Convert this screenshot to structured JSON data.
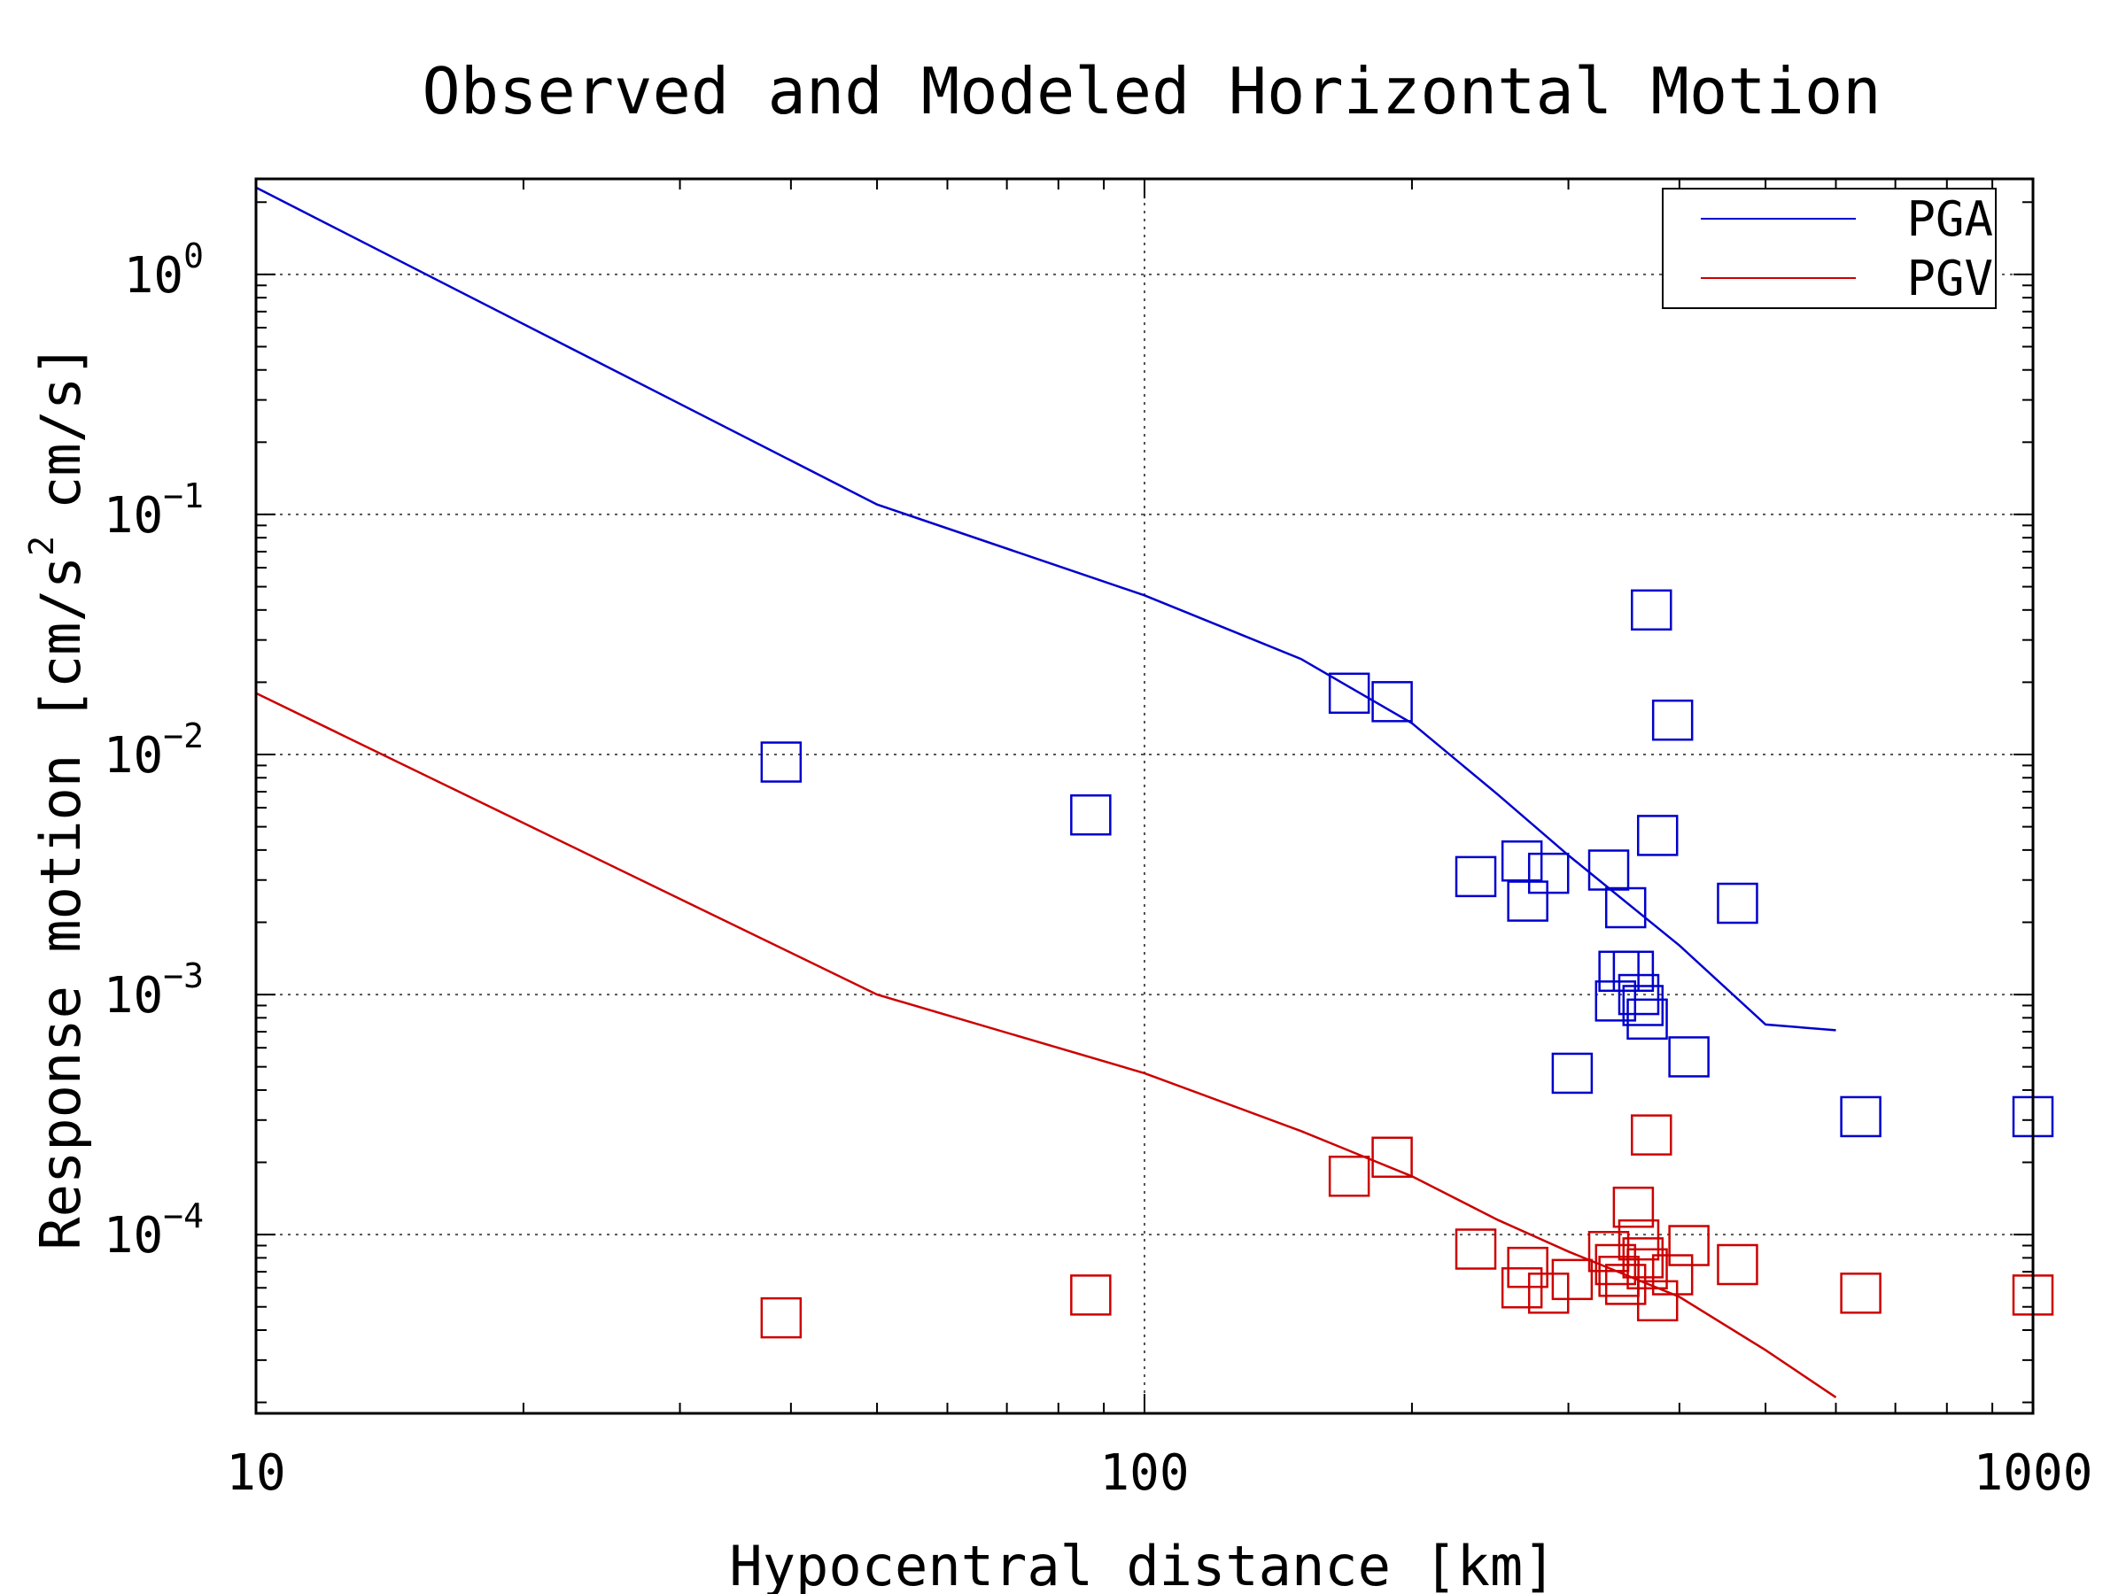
{
  "chart_data": {
    "type": "scatter",
    "title": "Observed and Modeled Horizontal Motion",
    "xlabel": "Hypocentral distance [km]",
    "ylabel": "Response motion [cm/s",
    "ylabel_sup": "2",
    "ylabel_tail": "cm/s]",
    "x_scale": "log",
    "y_scale": "log",
    "xlim": [
      10,
      1000
    ],
    "ylim": [
      1.8e-05,
      2.5
    ],
    "grid": true,
    "legend_position": "top-right",
    "x_ticks": [
      {
        "value": 10,
        "label": "10"
      },
      {
        "value": 100,
        "label": "100"
      },
      {
        "value": 1000,
        "label": "1000"
      }
    ],
    "y_ticks": [
      {
        "value": 1,
        "base": "10",
        "exp": "0"
      },
      {
        "value": 0.1,
        "base": "10",
        "exp": "−1"
      },
      {
        "value": 0.01,
        "base": "10",
        "exp": "−2"
      },
      {
        "value": 0.001,
        "base": "10",
        "exp": "−3"
      },
      {
        "value": 0.0001,
        "base": "10",
        "exp": "−4"
      }
    ],
    "series": [
      {
        "name": "PGA",
        "color": "#0000cc",
        "line": {
          "x": [
            10,
            50,
            100,
            150,
            200,
            250,
            300,
            400,
            500,
            600
          ],
          "y": [
            2.3,
            0.11,
            0.046,
            0.025,
            0.0135,
            0.0068,
            0.0038,
            0.0016,
            0.00075,
            0.00071
          ]
        },
        "points": {
          "x": [
            39,
            87,
            170,
            190,
            236,
            266,
            270,
            285,
            303,
            333,
            339,
            342,
            348,
            355,
            360,
            364,
            368,
            372,
            378,
            393,
            410,
            465,
            640,
            1000
          ],
          "y": [
            0.0093,
            0.0056,
            0.018,
            0.0166,
            0.0031,
            0.0036,
            0.00245,
            0.0032,
            0.00047,
            0.0033,
            0.00094,
            0.00125,
            0.0023,
            0.00125,
            0.001,
            0.0009,
            0.00079,
            0.04,
            0.0046,
            0.0139,
            0.00055,
            0.0024,
            0.00031,
            0.00031
          ]
        }
      },
      {
        "name": "PGV",
        "color": "#cc0000",
        "line": {
          "x": [
            10,
            50,
            100,
            150,
            200,
            250,
            300,
            400,
            500,
            600
          ],
          "y": [
            0.018,
            0.001,
            0.00047,
            0.00027,
            0.000175,
            0.000115,
            8.5e-05,
            5.5e-05,
            3.3e-05,
            2.1e-05
          ]
        },
        "points": {
          "x": [
            39,
            87,
            170,
            190,
            236,
            266,
            270,
            285,
            303,
            333,
            339,
            342,
            348,
            355,
            360,
            364,
            368,
            372,
            378,
            393,
            410,
            465,
            640,
            1000
          ],
          "y": [
            4.5e-05,
            5.6e-05,
            0.000175,
            0.00021,
            8.7e-05,
            6e-05,
            7.3e-05,
            5.7e-05,
            6.5e-05,
            8.5e-05,
            7.5e-05,
            6.7e-05,
            6.2e-05,
            0.00013,
            9.5e-05,
            8e-05,
            7.2e-05,
            0.00026,
            5.3e-05,
            6.8e-05,
            9e-05,
            7.5e-05,
            5.7e-05,
            5.6e-05
          ]
        }
      }
    ]
  }
}
